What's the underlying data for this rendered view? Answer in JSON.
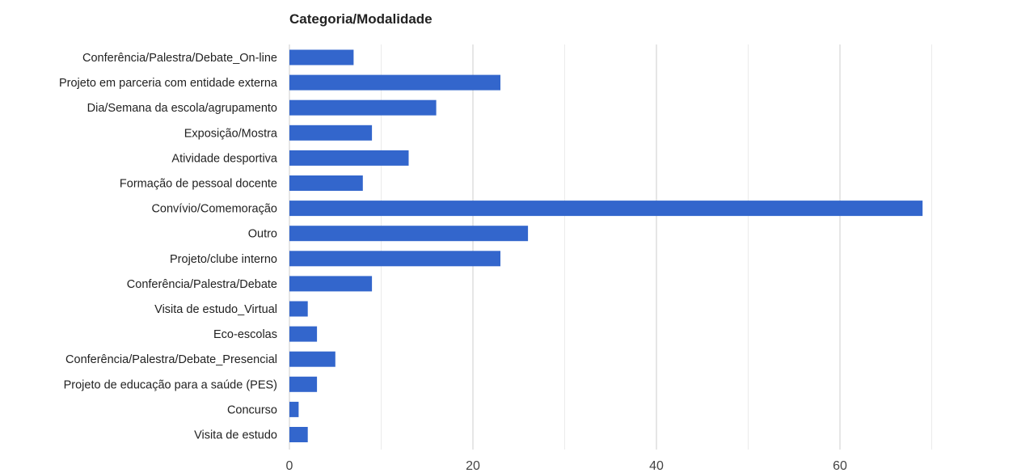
{
  "chart_data": {
    "type": "bar",
    "orientation": "horizontal",
    "title": "Categoria/Modalidade",
    "xlabel": "",
    "ylabel": "",
    "categories": [
      "Conferência/Palestra/Debate_On-line",
      "Projeto em parceria com entidade externa",
      "Dia/Semana da escola/agrupamento",
      "Exposição/Mostra",
      "Atividade desportiva",
      "Formação de pessoal docente",
      "Convívio/Comemoração",
      "Outro",
      "Projeto/clube interno",
      "Conferência/Palestra/Debate",
      "Visita de estudo_Virtual",
      "Eco-escolas",
      "Conferência/Palestra/Debate_Presencial",
      "Projeto de educação para a saúde (PES)",
      "Concurso",
      "Visita de estudo"
    ],
    "values": [
      7,
      23,
      16,
      9,
      13,
      8,
      69,
      26,
      23,
      9,
      2,
      3,
      5,
      3,
      1,
      2
    ],
    "xlim": [
      0,
      70
    ],
    "ticks": [
      0,
      20,
      40,
      60
    ],
    "minor_gridlines": [
      10,
      30,
      50,
      70
    ],
    "bar_color": "#3366cc",
    "gridline_color": "#cccccc",
    "grid": true,
    "legend": "none"
  }
}
